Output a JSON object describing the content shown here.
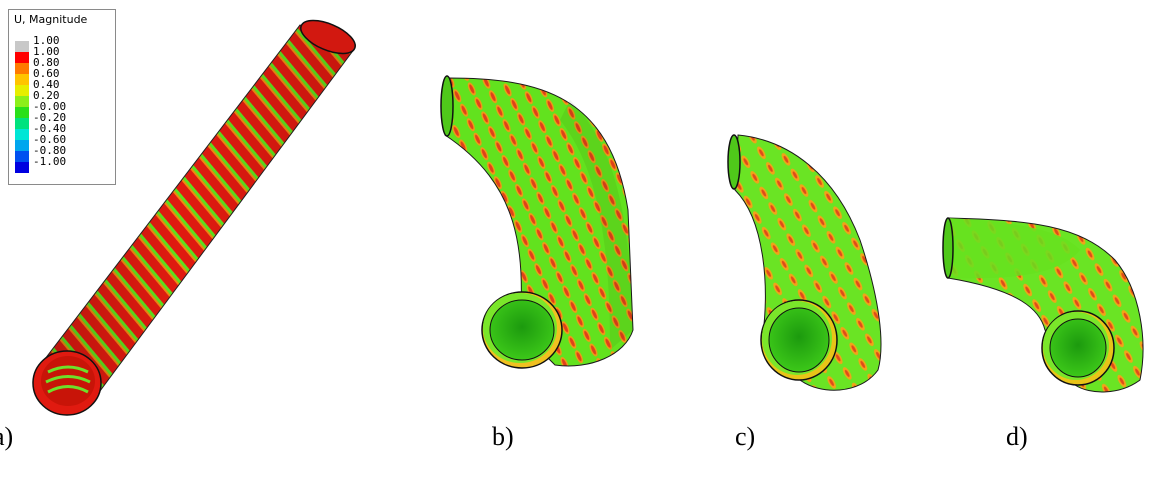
{
  "legend": {
    "title": "U, Magnitude",
    "values": [
      "1.00",
      "1.00",
      "0.80",
      "0.60",
      "0.40",
      "0.20",
      "-0.00",
      "-0.20",
      "-0.40",
      "-0.60",
      "-0.80",
      "-1.00"
    ],
    "colors": [
      "#c8c8c8",
      "#ff0000",
      "#ff7a00",
      "#ffc400",
      "#e7ee00",
      "#8cef1a",
      "#29e01a",
      "#00e27e",
      "#00e6d6",
      "#00a6ee",
      "#0050f0",
      "#0000e0"
    ]
  },
  "panels": [
    {
      "label": "a)"
    },
    {
      "label": "b)"
    },
    {
      "label": "c)"
    },
    {
      "label": "d)"
    }
  ],
  "colors": {
    "red": "#e01a10",
    "green": "#5fe01e",
    "light_green": "#7aea2a",
    "orange": "#f08a10",
    "yellow": "#e6d21a"
  }
}
